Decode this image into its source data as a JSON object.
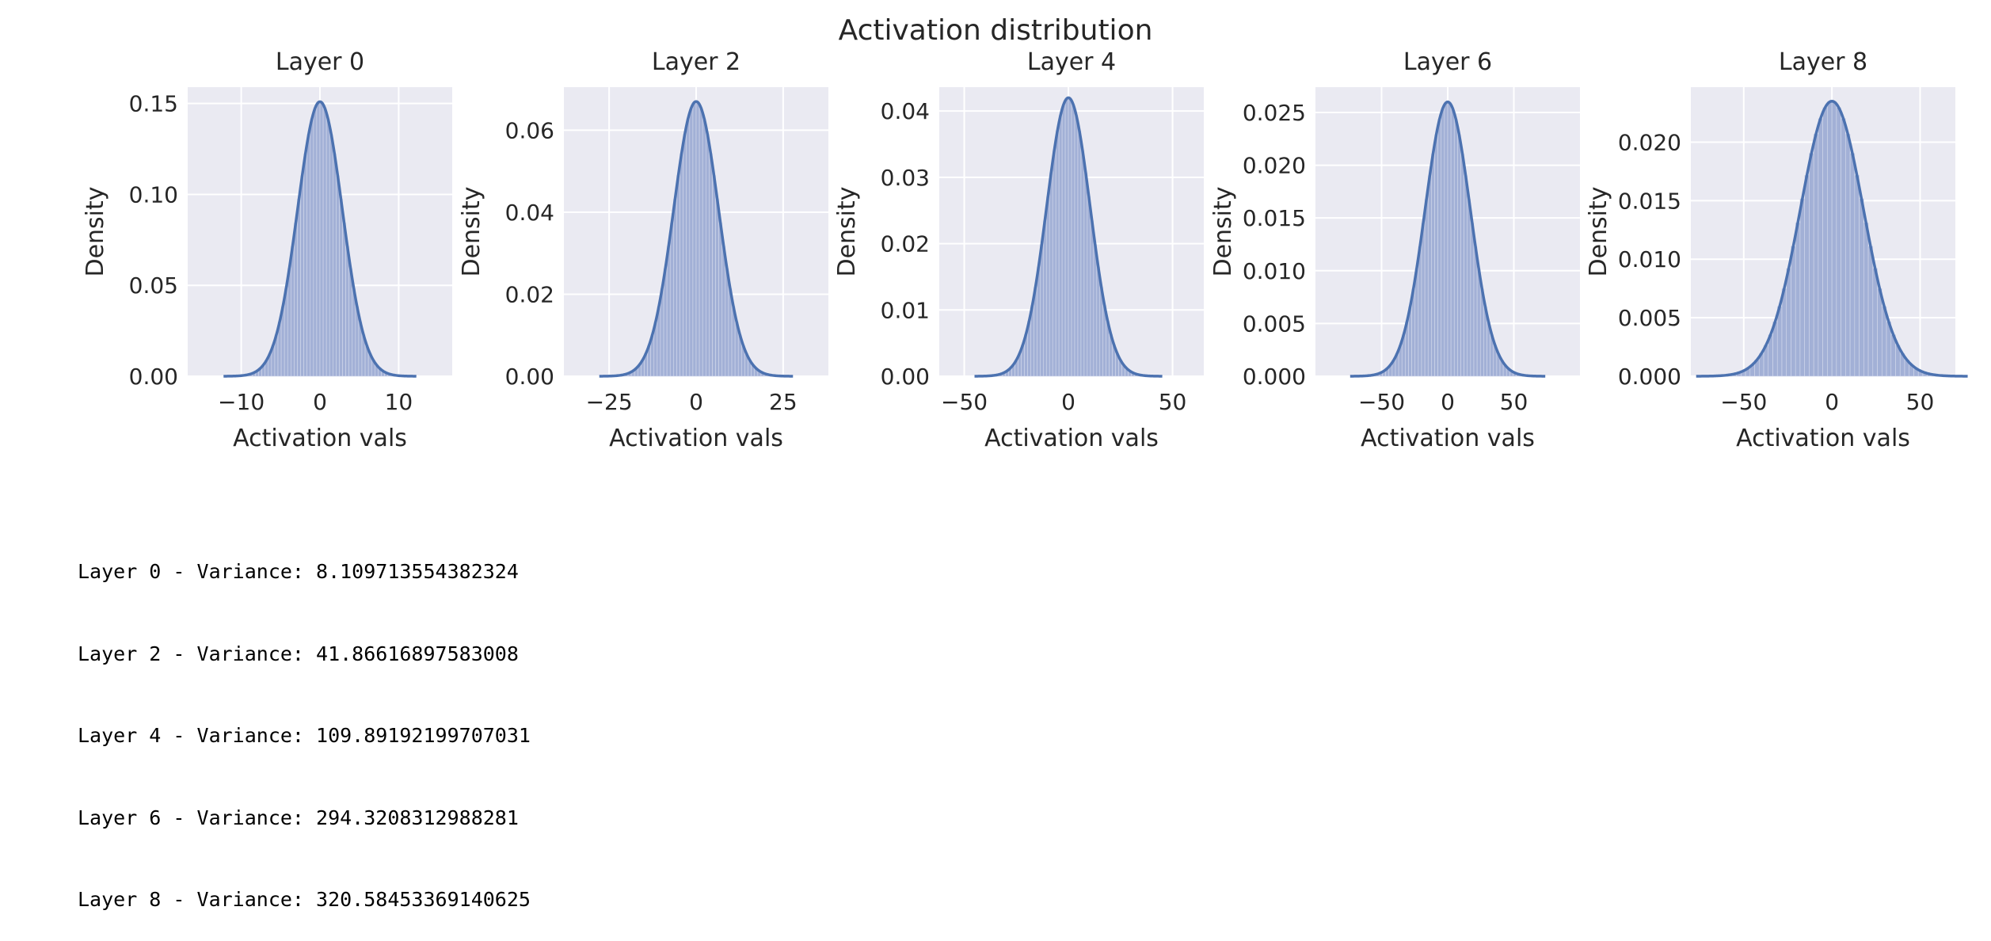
{
  "figure": {
    "suptitle": "Activation distribution"
  },
  "chart_data": [
    {
      "type": "histogram+kde",
      "title": "Layer 0",
      "xlabel": "Activation vals",
      "ylabel": "Density",
      "xlim": [
        -16.8,
        16.8
      ],
      "ylim": [
        0,
        0.159
      ],
      "xticks": [
        -10,
        0,
        10
      ],
      "xtick_labels": [
        "−10",
        "0",
        "10"
      ],
      "yticks": [
        0,
        0.05,
        0.1,
        0.15
      ],
      "ytick_labels": [
        "0.00",
        "0.05",
        "0.10",
        "0.15"
      ],
      "variance": 8.11,
      "peak_density": 0.151,
      "grid": true
    },
    {
      "type": "histogram+kde",
      "title": "Layer 2",
      "xlabel": "Activation vals",
      "ylabel": "Density",
      "xlim": [
        -38,
        38
      ],
      "ylim": [
        0,
        0.0705
      ],
      "xticks": [
        -25,
        0,
        25
      ],
      "xtick_labels": [
        "−25",
        "0",
        "25"
      ],
      "yticks": [
        0,
        0.02,
        0.04,
        0.06
      ],
      "ytick_labels": [
        "0.00",
        "0.02",
        "0.04",
        "0.06"
      ],
      "variance": 41.87,
      "peak_density": 0.067,
      "grid": true
    },
    {
      "type": "histogram+kde",
      "title": "Layer 4",
      "xlabel": "Activation vals",
      "ylabel": "Density",
      "xlim": [
        -62,
        65
      ],
      "ylim": [
        0,
        0.0436
      ],
      "xticks": [
        -50,
        0,
        50
      ],
      "xtick_labels": [
        "−50",
        "0",
        "50"
      ],
      "yticks": [
        0,
        0.01,
        0.02,
        0.03,
        0.04
      ],
      "ytick_labels": [
        "0.00",
        "0.01",
        "0.02",
        "0.03",
        "0.04"
      ],
      "variance": 109.89,
      "peak_density": 0.042,
      "grid": true
    },
    {
      "type": "histogram+kde",
      "title": "Layer 6",
      "xlabel": "Activation vals",
      "ylabel": "Density",
      "xlim": [
        -100,
        100
      ],
      "ylim": [
        0,
        0.0274
      ],
      "xticks": [
        -50,
        0,
        50
      ],
      "xtick_labels": [
        "−50",
        "0",
        "50"
      ],
      "yticks": [
        0,
        0.005,
        0.01,
        0.015,
        0.02,
        0.025
      ],
      "ytick_labels": [
        "0.000",
        "0.005",
        "0.010",
        "0.015",
        "0.020",
        "0.025"
      ],
      "variance": 294.32,
      "peak_density": 0.026,
      "grid": true
    },
    {
      "type": "histogram+kde",
      "title": "Layer 8",
      "xlabel": "Activation vals",
      "ylabel": "Density",
      "xlim": [
        -80,
        70
      ],
      "ylim": [
        0,
        0.0247
      ],
      "xticks": [
        -50,
        0,
        50
      ],
      "xtick_labels": [
        "−50",
        "0",
        "50"
      ],
      "yticks": [
        0,
        0.005,
        0.01,
        0.015,
        0.02
      ],
      "ytick_labels": [
        "0.000",
        "0.005",
        "0.010",
        "0.015",
        "0.020"
      ],
      "variance": 320.58,
      "peak_density": 0.0235,
      "grid": true
    }
  ],
  "variance_log": [
    "Layer 0 - Variance: 8.109713554382324",
    "Layer 2 - Variance: 41.86616897583008",
    "Layer 4 - Variance: 109.89192199707031",
    "Layer 6 - Variance: 294.3208312988281",
    "Layer 8 - Variance: 320.58453369140625"
  ],
  "colors": {
    "axes_bg": "#EAEAF2",
    "grid": "#FFFFFF",
    "bar_fill": "#A2B0D6",
    "line": "#4C72B0"
  }
}
